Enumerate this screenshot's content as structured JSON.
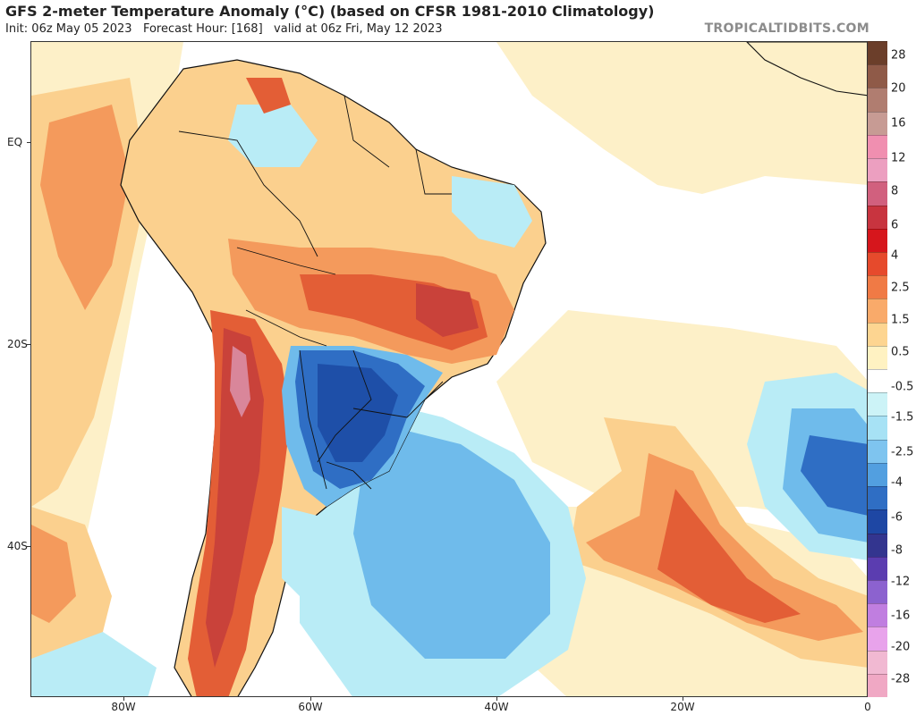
{
  "header": {
    "title": "GFS 2-meter Temperature Anomaly (°C) (based on CFSR 1981-2010 Climatology)",
    "subtitle": "Init: 06z May 05 2023   Forecast Hour: [168]   valid at 06z Fri, May 12 2023",
    "watermark": "TROPICALTIDBITS.COM"
  },
  "axes": {
    "lat_labels": [
      "EQ",
      "20S",
      "40S"
    ],
    "lon_labels": [
      "80W",
      "60W",
      "40W",
      "20W",
      "0"
    ]
  },
  "colorbar": {
    "labels": [
      "28",
      "20",
      "16",
      "12",
      "8",
      "6",
      "4",
      "2.5",
      "1.5",
      "0.5",
      "-0.5",
      "-1.5",
      "-2.5",
      "-4",
      "-6",
      "-8",
      "-12",
      "-16",
      "-20",
      "-28"
    ],
    "colors": [
      "#6b3e2a",
      "#8f5a48",
      "#b07d70",
      "#c79b94",
      "#f08fb0",
      "#ec9fc0",
      "#d1607e",
      "#c8343f",
      "#d6161c",
      "#e64a2c",
      "#f07a45",
      "#f9aa6a",
      "#fdd591",
      "#fff2c2",
      "#ffffff",
      "#ccf3f7",
      "#a7e2f5",
      "#7ec4ef",
      "#529fe0",
      "#2f6ec4",
      "#1e47a4",
      "#33358f",
      "#5b3db0",
      "#8c62cf",
      "#c07ee0",
      "#e8a3eb",
      "#f1b9d2",
      "#f0a8c4"
    ]
  },
  "map": {
    "colors": {
      "ocean_warm": "#fdf0c8",
      "ocean_neutral": "#ffffff",
      "warm_light": "#fbd08e",
      "warm_mid": "#f49a5c",
      "warm_strong": "#e35e36",
      "warm_hot": "#c9423a",
      "andes_pink": "#d9869a",
      "cool_light": "#b9ecf6",
      "cool_mid": "#6fbbeb",
      "cool_strong": "#2f6ec4",
      "cool_deep": "#1e4fa8",
      "border": "#111111"
    }
  }
}
